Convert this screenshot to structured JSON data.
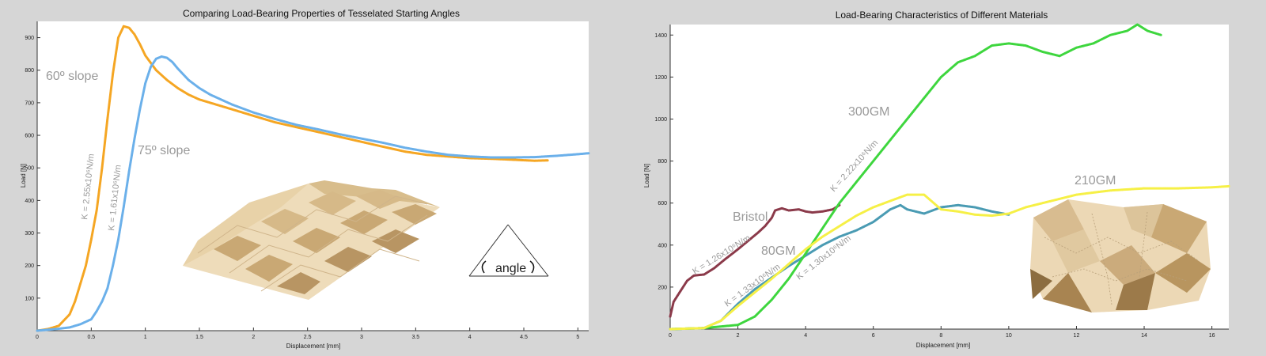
{
  "chart_data": [
    {
      "type": "scatter",
      "title": "Comparing Load-Bearing Properties of Tesselated Starting Angles",
      "xlabel": "Displacement [mm]",
      "ylabel": "Load [N]",
      "xlim": [
        0,
        5.1
      ],
      "ylim": [
        0,
        950
      ],
      "xticks": [
        0,
        0.5,
        1,
        1.5,
        2,
        2.5,
        3,
        3.5,
        4,
        4.5,
        5
      ],
      "xtick_labels": [
        "0",
        "0.5",
        "1",
        "1.5",
        "2",
        "2.5",
        "3",
        "3.5",
        "4",
        "4.5",
        "5"
      ],
      "yticks": [
        100,
        200,
        300,
        400,
        500,
        600,
        700,
        800,
        900
      ],
      "ytick_labels": [
        "100",
        "200",
        "300",
        "400",
        "500",
        "600",
        "700",
        "800",
        "900"
      ],
      "grid": false,
      "series": [
        {
          "name": "60º slope",
          "color": "#f5a623",
          "points": [
            [
              0,
              0
            ],
            [
              0.1,
              5
            ],
            [
              0.2,
              15
            ],
            [
              0.3,
              50
            ],
            [
              0.35,
              90
            ],
            [
              0.4,
              145
            ],
            [
              0.45,
              200
            ],
            [
              0.5,
              280
            ],
            [
              0.55,
              370
            ],
            [
              0.6,
              500
            ],
            [
              0.65,
              650
            ],
            [
              0.7,
              790
            ],
            [
              0.75,
              900
            ],
            [
              0.8,
              935
            ],
            [
              0.85,
              930
            ],
            [
              0.9,
              910
            ],
            [
              0.95,
              880
            ],
            [
              1.0,
              845
            ],
            [
              1.1,
              800
            ],
            [
              1.2,
              770
            ],
            [
              1.3,
              745
            ],
            [
              1.4,
              725
            ],
            [
              1.5,
              710
            ],
            [
              1.6,
              700
            ],
            [
              1.8,
              680
            ],
            [
              2.0,
              660
            ],
            [
              2.2,
              640
            ],
            [
              2.4,
              625
            ],
            [
              2.6,
              610
            ],
            [
              2.8,
              595
            ],
            [
              3.0,
              580
            ],
            [
              3.2,
              565
            ],
            [
              3.4,
              550
            ],
            [
              3.6,
              540
            ],
            [
              3.8,
              535
            ],
            [
              4.0,
              530
            ],
            [
              4.2,
              528
            ],
            [
              4.4,
              525
            ],
            [
              4.6,
              522
            ],
            [
              4.72,
              523
            ]
          ]
        },
        {
          "name": "75º slope",
          "color": "#6bb0ea",
          "points": [
            [
              0,
              0
            ],
            [
              0.1,
              3
            ],
            [
              0.2,
              6
            ],
            [
              0.3,
              10
            ],
            [
              0.4,
              20
            ],
            [
              0.5,
              35
            ],
            [
              0.55,
              60
            ],
            [
              0.6,
              90
            ],
            [
              0.65,
              130
            ],
            [
              0.7,
              200
            ],
            [
              0.75,
              280
            ],
            [
              0.8,
              380
            ],
            [
              0.85,
              490
            ],
            [
              0.9,
              590
            ],
            [
              0.95,
              680
            ],
            [
              1.0,
              760
            ],
            [
              1.05,
              810
            ],
            [
              1.1,
              835
            ],
            [
              1.15,
              842
            ],
            [
              1.2,
              838
            ],
            [
              1.25,
              825
            ],
            [
              1.3,
              805
            ],
            [
              1.4,
              770
            ],
            [
              1.5,
              745
            ],
            [
              1.6,
              725
            ],
            [
              1.7,
              710
            ],
            [
              1.8,
              695
            ],
            [
              2.0,
              670
            ],
            [
              2.2,
              650
            ],
            [
              2.4,
              632
            ],
            [
              2.6,
              618
            ],
            [
              2.8,
              603
            ],
            [
              3.0,
              590
            ],
            [
              3.2,
              577
            ],
            [
              3.4,
              562
            ],
            [
              3.6,
              550
            ],
            [
              3.8,
              540
            ],
            [
              4.0,
              535
            ],
            [
              4.2,
              532
            ],
            [
              4.4,
              532
            ],
            [
              4.6,
              533
            ],
            [
              4.8,
              537
            ],
            [
              5.0,
              542
            ],
            [
              5.1,
              545
            ]
          ]
        }
      ],
      "annotations": [
        {
          "text": "60º slope",
          "series": 0
        },
        {
          "text": "75º slope",
          "series": 1
        },
        {
          "text": "K = 2.55x10⁶N/m",
          "series": 0
        },
        {
          "text": "K = 1.61x10⁶N/m",
          "series": 1
        }
      ],
      "inset_label": "angle"
    },
    {
      "type": "scatter",
      "title": "Load-Bearing Characteristics of Different Materials",
      "xlabel": "Displacement [mm]",
      "ylabel": "Load [N]",
      "xlim": [
        0,
        16.5
      ],
      "ylim": [
        0,
        1450
      ],
      "xticks": [
        0,
        2,
        4,
        6,
        8,
        10,
        12,
        14,
        16
      ],
      "xtick_labels": [
        "0",
        "2",
        "4",
        "6",
        "8",
        "10",
        "12",
        "14",
        "16"
      ],
      "yticks": [
        200,
        400,
        600,
        800,
        1000,
        1200,
        1400
      ],
      "ytick_labels": [
        "200",
        "400",
        "600",
        "800",
        "1000",
        "1200",
        "1400"
      ],
      "grid": false,
      "series": [
        {
          "name": "Bristol",
          "color": "#8b3a4a",
          "points": [
            [
              0,
              60
            ],
            [
              0.1,
              130
            ],
            [
              0.3,
              180
            ],
            [
              0.5,
              230
            ],
            [
              0.7,
              255
            ],
            [
              1.0,
              260
            ],
            [
              1.3,
              290
            ],
            [
              1.6,
              330
            ],
            [
              2.0,
              380
            ],
            [
              2.3,
              420
            ],
            [
              2.6,
              460
            ],
            [
              2.8,
              490
            ],
            [
              3.0,
              530
            ],
            [
              3.1,
              565
            ],
            [
              3.3,
              575
            ],
            [
              3.5,
              565
            ],
            [
              3.8,
              570
            ],
            [
              4.0,
              560
            ],
            [
              4.2,
              555
            ],
            [
              4.5,
              560
            ],
            [
              4.8,
              570
            ],
            [
              5.0,
              590
            ]
          ]
        },
        {
          "name": "80GM",
          "color": "#4a9bb3",
          "points": [
            [
              0,
              0
            ],
            [
              1.0,
              5
            ],
            [
              1.5,
              40
            ],
            [
              2.0,
              120
            ],
            [
              2.5,
              190
            ],
            [
              3.0,
              245
            ],
            [
              3.5,
              300
            ],
            [
              4.0,
              350
            ],
            [
              4.5,
              400
            ],
            [
              5.0,
              440
            ],
            [
              5.5,
              470
            ],
            [
              6.0,
              510
            ],
            [
              6.5,
              570
            ],
            [
              6.8,
              590
            ],
            [
              7.0,
              570
            ],
            [
              7.5,
              550
            ],
            [
              8.0,
              580
            ],
            [
              8.5,
              590
            ],
            [
              9.0,
              580
            ],
            [
              9.5,
              560
            ],
            [
              10.0,
              545
            ]
          ]
        },
        {
          "name": "300GM",
          "color": "#3ed63e",
          "points": [
            [
              0,
              0
            ],
            [
              1.0,
              5
            ],
            [
              2.0,
              20
            ],
            [
              2.5,
              60
            ],
            [
              3.0,
              140
            ],
            [
              3.5,
              240
            ],
            [
              4.0,
              360
            ],
            [
              4.5,
              480
            ],
            [
              5.0,
              600
            ],
            [
              5.5,
              700
            ],
            [
              6.0,
              800
            ],
            [
              6.5,
              900
            ],
            [
              7.0,
              1000
            ],
            [
              7.5,
              1100
            ],
            [
              8.0,
              1200
            ],
            [
              8.5,
              1270
            ],
            [
              9.0,
              1300
            ],
            [
              9.5,
              1350
            ],
            [
              10.0,
              1360
            ],
            [
              10.5,
              1350
            ],
            [
              11.0,
              1320
            ],
            [
              11.5,
              1300
            ],
            [
              12.0,
              1340
            ],
            [
              12.5,
              1360
            ],
            [
              13.0,
              1400
            ],
            [
              13.5,
              1420
            ],
            [
              13.8,
              1450
            ],
            [
              14.1,
              1420
            ],
            [
              14.5,
              1400
            ]
          ]
        },
        {
          "name": "210GM",
          "color": "#f6f046",
          "points": [
            [
              0,
              0
            ],
            [
              1.0,
              5
            ],
            [
              1.5,
              40
            ],
            [
              2.0,
              110
            ],
            [
              2.5,
              175
            ],
            [
              3.0,
              240
            ],
            [
              3.5,
              310
            ],
            [
              4.0,
              380
            ],
            [
              4.5,
              440
            ],
            [
              5.0,
              490
            ],
            [
              5.5,
              540
            ],
            [
              6.0,
              580
            ],
            [
              6.5,
              610
            ],
            [
              7.0,
              640
            ],
            [
              7.5,
              640
            ],
            [
              8.0,
              570
            ],
            [
              8.5,
              560
            ],
            [
              9.0,
              545
            ],
            [
              9.5,
              540
            ],
            [
              10.0,
              550
            ],
            [
              10.5,
              580
            ],
            [
              11.0,
              600
            ],
            [
              11.5,
              620
            ],
            [
              12.0,
              640
            ],
            [
              12.5,
              650
            ],
            [
              13.0,
              660
            ],
            [
              14.0,
              670
            ],
            [
              15.0,
              670
            ],
            [
              16.0,
              675
            ],
            [
              16.5,
              680
            ]
          ]
        }
      ],
      "annotations": [
        {
          "text": "Bristol",
          "series": 0
        },
        {
          "text": "80GM",
          "series": 1
        },
        {
          "text": "300GM",
          "series": 2
        },
        {
          "text": "210GM",
          "series": 3
        },
        {
          "text": "K = 1.26x10⁶N/m",
          "series": 0
        },
        {
          "text": "K = 1.33x10⁶N/m",
          "series": 1
        },
        {
          "text": "K = 2.22x10⁶N/m",
          "series": 2
        },
        {
          "text": "K = 1.30x10⁶N/m",
          "series": 3
        }
      ]
    }
  ]
}
